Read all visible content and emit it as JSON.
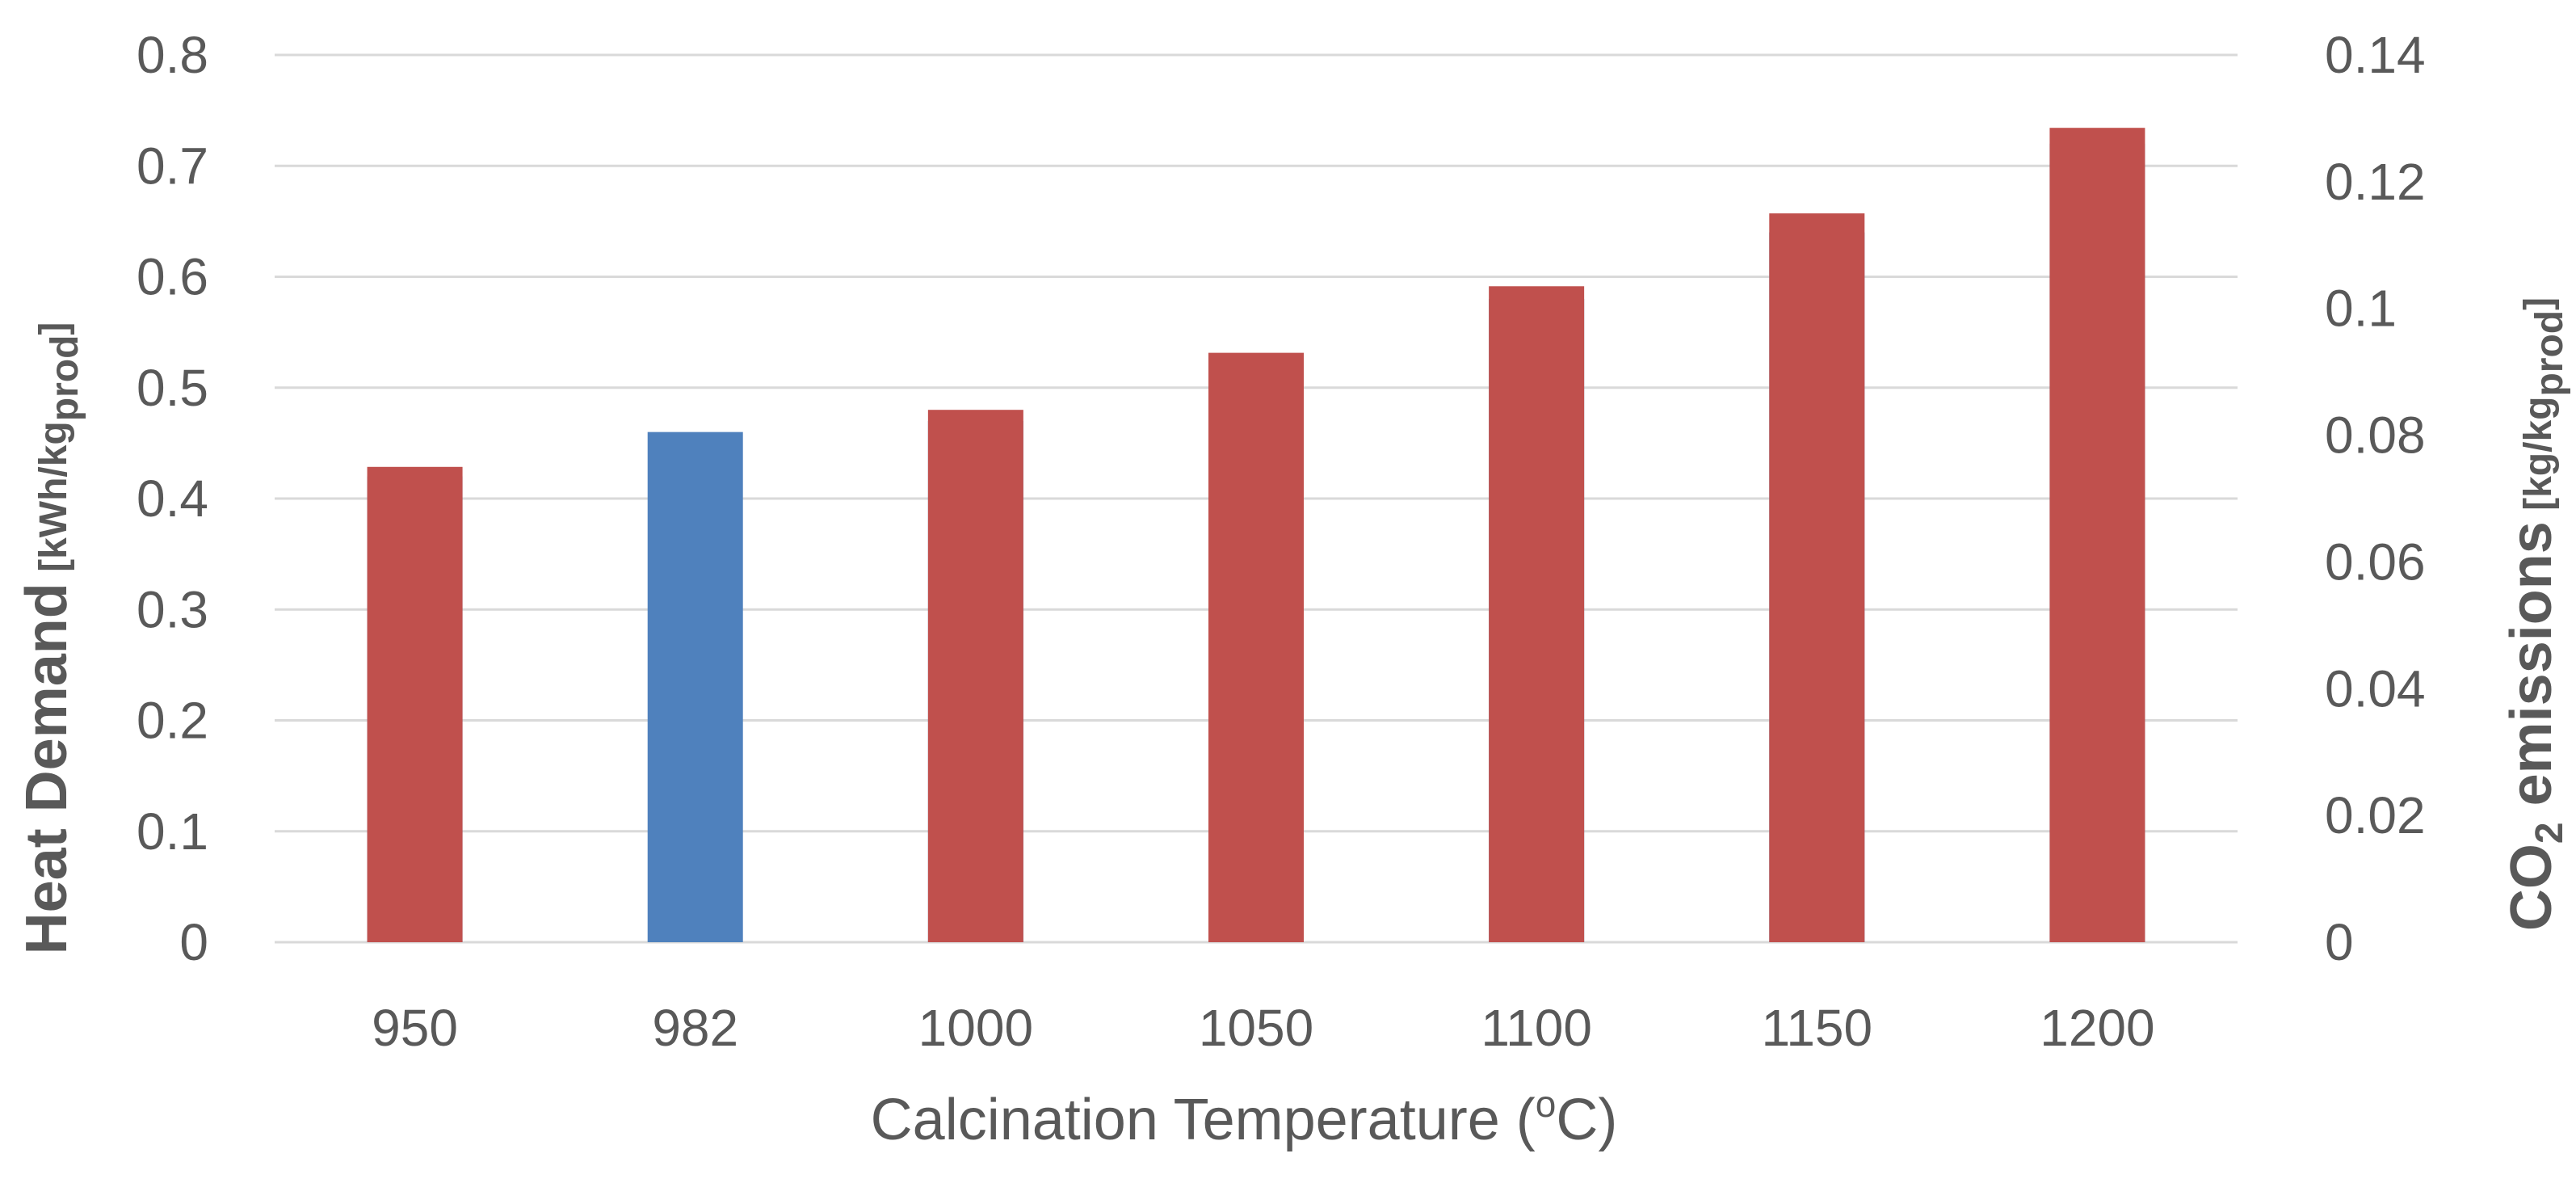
{
  "chart_data": {
    "type": "bar",
    "categories": [
      "950",
      "982",
      "1000",
      "1050",
      "1100",
      "1150",
      "1200"
    ],
    "series": [
      {
        "name": "Heat Demand",
        "axis": "left",
        "values": [
          0.42,
          0.46,
          0.47,
          0.52,
          0.58,
          0.64,
          0.72
        ],
        "colors": [
          "#4f81bd",
          "#4f81bd",
          "#4f81bd",
          "#4f81bd",
          "#4f81bd",
          "#4f81bd",
          "#4f81bd"
        ]
      },
      {
        "name": "CO2 emissions",
        "axis": "right",
        "values": [
          0.075,
          0,
          0.084,
          0.093,
          0.1035,
          0.115,
          0.1285
        ],
        "colors": [
          "#c0504d",
          "#c0504d",
          "#c0504d",
          "#c0504d",
          "#c0504d",
          "#c0504d",
          "#c0504d"
        ]
      }
    ],
    "left_axis": {
      "ylim": [
        0,
        0.8
      ],
      "ticks": [
        "0",
        "0.1",
        "0.2",
        "0.3",
        "0.4",
        "0.5",
        "0.6",
        "0.7",
        "0.8"
      ],
      "title_main": "Heat Demand",
      "title_unit_open": "[kWh/kg",
      "title_unit_sub": "prod",
      "title_unit_close": "]"
    },
    "right_axis": {
      "ylim": [
        0,
        0.14
      ],
      "ticks": [
        "0",
        "0.02",
        "0.04",
        "0.06",
        "0.08",
        "0.1",
        "0.12",
        "0.14"
      ],
      "title_co": "CO",
      "title_sub2": "2",
      "title_main": " emissions",
      "title_unit_open": "[kg/kg",
      "title_unit_sub": "prod",
      "title_unit_close": "]"
    },
    "xlabel_before": "Calcination Temperature (",
    "xlabel_sup": "o",
    "xlabel_after": "C)",
    "grid": true
  }
}
